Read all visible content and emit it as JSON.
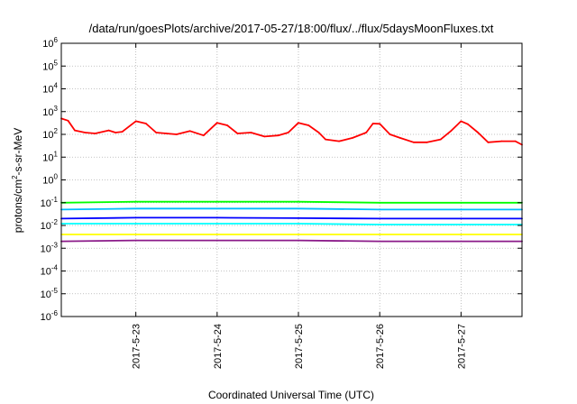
{
  "chart_data": {
    "type": "line",
    "title": "/data/run/goesPlots/archive/2017-05-27/18:00/flux/../flux/5daysMoonFluxes.txt",
    "xlabel": "Coordinated Universal Time (UTC)",
    "ylabel": {
      "pre": "protons/cm",
      "sup": "2",
      "post": "-s-sr-MeV"
    },
    "yscale": "log",
    "ylim": [
      1e-06,
      1000000.0
    ],
    "y_ticks": [
      {
        "base": "10",
        "exp": "-6",
        "value": 1e-06
      },
      {
        "base": "10",
        "exp": "-5",
        "value": 1e-05
      },
      {
        "base": "10",
        "exp": "-4",
        "value": 0.0001
      },
      {
        "base": "10",
        "exp": "-3",
        "value": 0.001
      },
      {
        "base": "10",
        "exp": "-2",
        "value": 0.01
      },
      {
        "base": "10",
        "exp": "-1",
        "value": 0.1
      },
      {
        "base": "10",
        "exp": "0",
        "value": 1
      },
      {
        "base": "10",
        "exp": "1",
        "value": 10
      },
      {
        "base": "10",
        "exp": "2",
        "value": 100
      },
      {
        "base": "10",
        "exp": "3",
        "value": 1000
      },
      {
        "base": "10",
        "exp": "4",
        "value": 10000
      },
      {
        "base": "10",
        "exp": "5",
        "value": 100000
      },
      {
        "base": "10",
        "exp": "6",
        "value": 1000000
      }
    ],
    "xlim": [
      "2017-05-22T02:00",
      "2017-05-27T18:00"
    ],
    "x_ticks": [
      {
        "label": "2017-5-23",
        "value": "2017-05-23T00:00"
      },
      {
        "label": "2017-5-24",
        "value": "2017-05-24T00:00"
      },
      {
        "label": "2017-5-25",
        "value": "2017-05-25T00:00"
      },
      {
        "label": "2017-5-26",
        "value": "2017-05-26T00:00"
      },
      {
        "label": "2017-5-27",
        "value": "2017-05-27T00:00"
      }
    ],
    "grid": true,
    "series": [
      {
        "color": "#ff0000",
        "x": [
          "2017-05-22T02:00",
          "2017-05-22T04:00",
          "2017-05-22T06:00",
          "2017-05-22T09:00",
          "2017-05-22T12:00",
          "2017-05-22T16:00",
          "2017-05-22T18:00",
          "2017-05-22T20:00",
          "2017-05-23T00:00",
          "2017-05-23T03:00",
          "2017-05-23T06:00",
          "2017-05-23T09:00",
          "2017-05-23T12:00",
          "2017-05-23T16:00",
          "2017-05-23T20:00",
          "2017-05-24T00:00",
          "2017-05-24T03:00",
          "2017-05-24T06:00",
          "2017-05-24T10:00",
          "2017-05-24T14:00",
          "2017-05-24T18:00",
          "2017-05-24T21:00",
          "2017-05-25T00:00",
          "2017-05-25T03:00",
          "2017-05-25T06:00",
          "2017-05-25T08:00",
          "2017-05-25T12:00",
          "2017-05-25T16:00",
          "2017-05-25T20:00",
          "2017-05-25T22:00",
          "2017-05-26T00:00",
          "2017-05-26T03:00",
          "2017-05-26T06:00",
          "2017-05-26T10:00",
          "2017-05-26T14:00",
          "2017-05-26T18:00",
          "2017-05-26T21:00",
          "2017-05-27T00:00",
          "2017-05-27T02:00",
          "2017-05-27T05:00",
          "2017-05-27T08:00",
          "2017-05-27T12:00",
          "2017-05-27T16:00",
          "2017-05-27T18:00"
        ],
        "values": [
          500,
          400,
          150,
          120,
          110,
          150,
          120,
          130,
          380,
          300,
          120,
          110,
          100,
          140,
          90,
          320,
          250,
          110,
          120,
          80,
          90,
          120,
          320,
          250,
          120,
          60,
          50,
          70,
          120,
          300,
          290,
          100,
          70,
          45,
          45,
          60,
          140,
          380,
          280,
          120,
          45,
          50,
          50,
          35
        ]
      },
      {
        "color": "#00ff00",
        "x": [
          "2017-05-22T02:00",
          "2017-05-23T00:00",
          "2017-05-24T00:00",
          "2017-05-25T00:00",
          "2017-05-26T00:00",
          "2017-05-27T00:00",
          "2017-05-27T18:00"
        ],
        "values": [
          0.1,
          0.11,
          0.11,
          0.11,
          0.1,
          0.1,
          0.1
        ]
      },
      {
        "color": "#00bbff",
        "x": [
          "2017-05-22T02:00",
          "2017-05-23T00:00",
          "2017-05-24T00:00",
          "2017-05-25T00:00",
          "2017-05-26T00:00",
          "2017-05-27T00:00",
          "2017-05-27T18:00"
        ],
        "values": [
          0.05,
          0.055,
          0.055,
          0.055,
          0.05,
          0.05,
          0.05
        ]
      },
      {
        "color": "#0000ff",
        "x": [
          "2017-05-22T02:00",
          "2017-05-23T00:00",
          "2017-05-24T00:00",
          "2017-05-25T00:00",
          "2017-05-26T00:00",
          "2017-05-27T00:00",
          "2017-05-27T18:00"
        ],
        "values": [
          0.02,
          0.022,
          0.022,
          0.021,
          0.02,
          0.02,
          0.02
        ]
      },
      {
        "color": "#00ffff",
        "x": [
          "2017-05-22T02:00",
          "2017-05-23T00:00",
          "2017-05-24T00:00",
          "2017-05-25T00:00",
          "2017-05-26T00:00",
          "2017-05-27T00:00",
          "2017-05-27T18:00"
        ],
        "values": [
          0.012,
          0.012,
          0.012,
          0.012,
          0.011,
          0.011,
          0.011
        ]
      },
      {
        "color": "#ffff00",
        "x": [
          "2017-05-22T02:00",
          "2017-05-23T00:00",
          "2017-05-24T00:00",
          "2017-05-25T00:00",
          "2017-05-26T00:00",
          "2017-05-27T00:00",
          "2017-05-27T18:00"
        ],
        "values": [
          0.004,
          0.004,
          0.004,
          0.004,
          0.004,
          0.004,
          0.004
        ]
      },
      {
        "color": "#8b1a89",
        "x": [
          "2017-05-22T02:00",
          "2017-05-23T00:00",
          "2017-05-24T00:00",
          "2017-05-25T00:00",
          "2017-05-26T00:00",
          "2017-05-27T00:00",
          "2017-05-27T18:00"
        ],
        "values": [
          0.002,
          0.0022,
          0.0022,
          0.0022,
          0.002,
          0.002,
          0.002
        ]
      }
    ]
  }
}
